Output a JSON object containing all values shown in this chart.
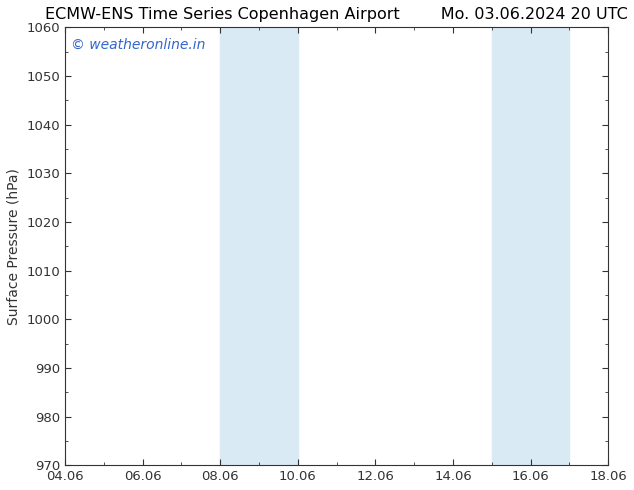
{
  "title": "ECMW-ENS Time Series Copenhagen Airport        Mo. 03.06.2024 20 UTC",
  "ylabel": "Surface Pressure (hPa)",
  "ylim": [
    970,
    1060
  ],
  "yticks": [
    970,
    980,
    990,
    1000,
    1010,
    1020,
    1030,
    1040,
    1050,
    1060
  ],
  "xlim_start": 0,
  "xlim_end": 14,
  "xtick_labels": [
    "04.06",
    "06.06",
    "08.06",
    "10.06",
    "12.06",
    "14.06",
    "16.06",
    "18.06"
  ],
  "xtick_positions": [
    0,
    2,
    4,
    6,
    8,
    10,
    12,
    14
  ],
  "shade_bands": [
    {
      "xmin": 4,
      "xmax": 6
    },
    {
      "xmin": 11,
      "xmax": 13
    }
  ],
  "shade_color": "#daeaf5",
  "background_color": "#ffffff",
  "plot_bg_color": "#ffffff",
  "watermark_text": "© weatheronline.in",
  "watermark_color": "#3366cc",
  "title_fontsize": 11.5,
  "axis_label_fontsize": 10,
  "tick_fontsize": 9.5,
  "watermark_fontsize": 10,
  "spine_color": "#333333",
  "tick_color": "#333333"
}
